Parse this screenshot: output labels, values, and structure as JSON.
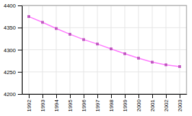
{
  "chart_data": {
    "type": "line",
    "x": [
      1992,
      1993,
      1994,
      1995,
      1996,
      1997,
      1998,
      1999,
      2000,
      2001,
      2002,
      2003
    ],
    "values": [
      4375,
      4362,
      4348,
      4335,
      4323,
      4313,
      4302,
      4291,
      4281,
      4272,
      4266,
      4262
    ],
    "color": "#ff77ff",
    "marker": "square",
    "xlim": [
      1991.5,
      2003.5
    ],
    "xticks": [
      1992,
      1993,
      1994,
      1995,
      1996,
      1997,
      1998,
      1999,
      2000,
      2001,
      2002,
      2003
    ],
    "ylim": [
      4200,
      4400
    ],
    "yticks": [
      4200,
      4250,
      4300,
      4350,
      4400
    ],
    "grid": true
  }
}
